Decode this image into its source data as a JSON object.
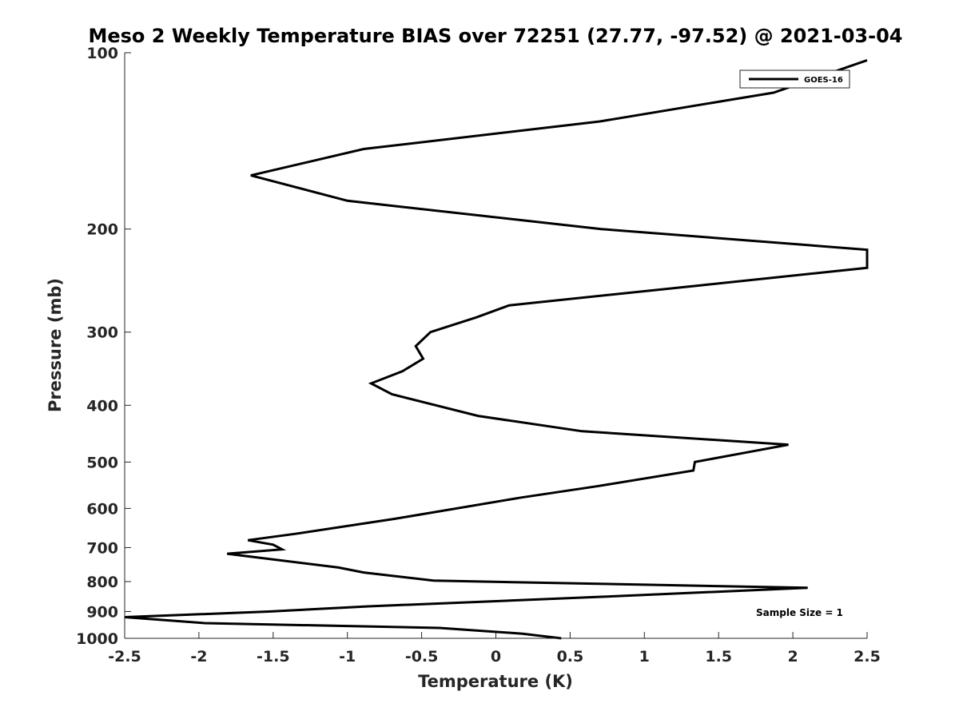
{
  "chart_data": {
    "type": "line",
    "title": "Meso 2 Weekly Temperature BIAS over 72251 (27.77, -97.52) @ 2021-03-04",
    "xlabel": "Temperature (K)",
    "ylabel": "Pressure (mb)",
    "xlim": [
      -2.5,
      2.5
    ],
    "ylim": [
      100,
      1000
    ],
    "y_scale": "log",
    "y_reversed": true,
    "x_ticks": [
      {
        "value": -2.5,
        "label": "-2.5"
      },
      {
        "value": -2,
        "label": "-2"
      },
      {
        "value": -1.5,
        "label": "-1.5"
      },
      {
        "value": -1,
        "label": "-1"
      },
      {
        "value": -0.5,
        "label": "-0.5"
      },
      {
        "value": 0,
        "label": "0"
      },
      {
        "value": 0.5,
        "label": "0.5"
      },
      {
        "value": 1,
        "label": "1"
      },
      {
        "value": 1.5,
        "label": "1.5"
      },
      {
        "value": 2,
        "label": "2"
      },
      {
        "value": 2.5,
        "label": "2.5"
      }
    ],
    "y_ticks": [
      {
        "value": 100,
        "label": "100"
      },
      {
        "value": 200,
        "label": "200"
      },
      {
        "value": 300,
        "label": "300"
      },
      {
        "value": 400,
        "label": "400"
      },
      {
        "value": 500,
        "label": "500"
      },
      {
        "value": 600,
        "label": "600"
      },
      {
        "value": 700,
        "label": "700"
      },
      {
        "value": 800,
        "label": "800"
      },
      {
        "value": 900,
        "label": "900"
      },
      {
        "value": 1000,
        "label": "1000"
      }
    ],
    "grid": false,
    "legend_position": "top-right",
    "series": [
      {
        "name": "GOES-16",
        "color": "#000000",
        "points": [
          {
            "x": 2.5,
            "y": 103
          },
          {
            "x": 1.87,
            "y": 117
          },
          {
            "x": 0.7,
            "y": 131
          },
          {
            "x": -0.89,
            "y": 146
          },
          {
            "x": -1.65,
            "y": 162
          },
          {
            "x": -1.0,
            "y": 179
          },
          {
            "x": 0.71,
            "y": 200
          },
          {
            "x": 2.5,
            "y": 217
          },
          {
            "x": 2.5,
            "y": 233
          },
          {
            "x": 1.35,
            "y": 250
          },
          {
            "x": 0.09,
            "y": 270
          },
          {
            "x": -0.13,
            "y": 283
          },
          {
            "x": -0.44,
            "y": 300
          },
          {
            "x": -0.54,
            "y": 317
          },
          {
            "x": -0.49,
            "y": 333
          },
          {
            "x": -0.63,
            "y": 350
          },
          {
            "x": -0.84,
            "y": 367
          },
          {
            "x": -0.7,
            "y": 383
          },
          {
            "x": -0.12,
            "y": 417
          },
          {
            "x": 0.58,
            "y": 443
          },
          {
            "x": 1.97,
            "y": 467
          },
          {
            "x": 1.66,
            "y": 483
          },
          {
            "x": 1.34,
            "y": 500
          },
          {
            "x": 1.33,
            "y": 517
          },
          {
            "x": 0.68,
            "y": 550
          },
          {
            "x": 0.17,
            "y": 575
          },
          {
            "x": -0.68,
            "y": 625
          },
          {
            "x": -1.35,
            "y": 663
          },
          {
            "x": -1.67,
            "y": 680
          },
          {
            "x": -1.5,
            "y": 692
          },
          {
            "x": -1.44,
            "y": 705
          },
          {
            "x": -1.81,
            "y": 717
          },
          {
            "x": -1.06,
            "y": 757
          },
          {
            "x": -0.89,
            "y": 772
          },
          {
            "x": -0.42,
            "y": 797
          },
          {
            "x": 2.1,
            "y": 820
          },
          {
            "x": 0.68,
            "y": 850
          },
          {
            "x": -0.86,
            "y": 882
          },
          {
            "x": -1.53,
            "y": 900
          },
          {
            "x": -2.5,
            "y": 920
          },
          {
            "x": -1.96,
            "y": 942
          },
          {
            "x": -0.38,
            "y": 960
          },
          {
            "x": 0.18,
            "y": 982
          },
          {
            "x": 0.44,
            "y": 1000
          }
        ]
      }
    ],
    "annotations": [
      {
        "text": "Sample Size = 1",
        "position": "bottom-right"
      }
    ]
  }
}
